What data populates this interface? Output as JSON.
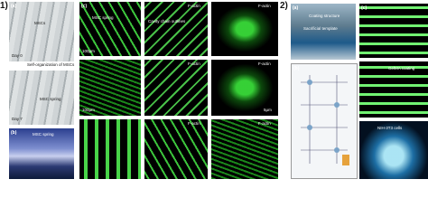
{
  "part1": {
    "label": "1)",
    "panel_a": {
      "label": "(a)",
      "cells": "MSCs",
      "day_top": "Day 0",
      "process": "Self-organization of MSCs",
      "helical": "MSC spring",
      "day_bottom": "Day 7"
    },
    "panel_b": {
      "label": "(b)",
      "spring": "MSC spring"
    },
    "panel_c": {
      "label": "(c)",
      "spring": "MSC spring",
      "scale_big": "100μm",
      "outline": "Cavity chain outlines",
      "stain": "F-actin",
      "scale_small": "5μm"
    }
  },
  "part2": {
    "label": "2)",
    "panel_a": {
      "label": "(a)",
      "coating": "Coating structure",
      "template": "Sacrificial template"
    },
    "panel_b": {
      "label": "(b)"
    },
    "panel_c": {
      "label": "(c)",
      "coating": "GelMA coating",
      "cells": "NIH-3T3 cells"
    }
  }
}
